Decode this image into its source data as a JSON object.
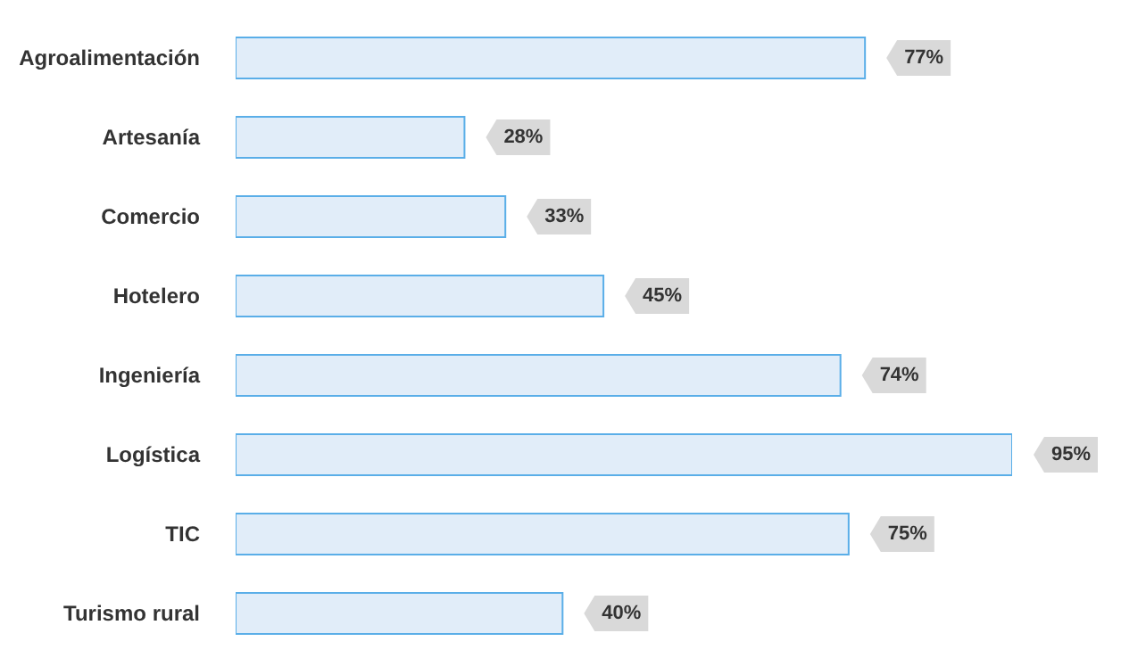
{
  "chart_data": {
    "type": "bar",
    "orientation": "horizontal",
    "categories": [
      "Agroalimentación",
      "Artesanía",
      "Comercio",
      "Hotelero",
      "Ingeniería",
      "Logística",
      "TIC",
      "Turismo rural"
    ],
    "values": [
      77,
      28,
      33,
      45,
      74,
      95,
      75,
      40
    ],
    "value_labels": [
      "77%",
      "28%",
      "33%",
      "45%",
      "74%",
      "95%",
      "75%",
      "40%"
    ],
    "color": "#e1edf9",
    "grid": false,
    "legend": false
  }
}
